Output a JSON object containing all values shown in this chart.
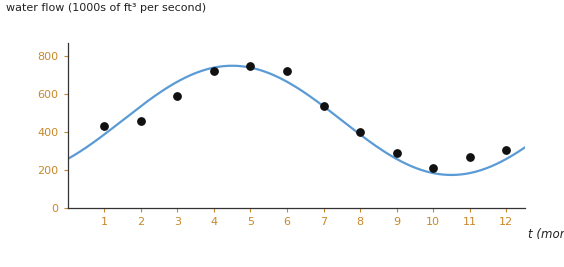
{
  "ylabel": "water flow (1000s of ft³ per second)",
  "xlabel": "t (months)",
  "xlim": [
    0,
    12.5
  ],
  "ylim": [
    0,
    870
  ],
  "yticks": [
    0,
    200,
    400,
    600,
    800
  ],
  "xticks": [
    1,
    2,
    3,
    4,
    5,
    6,
    7,
    8,
    9,
    10,
    11,
    12
  ],
  "dot_t": [
    1,
    2,
    3,
    4,
    5,
    6,
    7,
    8,
    9,
    10,
    11,
    12
  ],
  "dot_y": [
    430,
    460,
    590,
    720,
    750,
    720,
    540,
    400,
    290,
    210,
    270,
    305
  ],
  "curve_color": "#5b9bd5",
  "dot_color": "#111111",
  "sine_A": 287,
  "sine_B": 0.5236,
  "sine_phi": 1.5,
  "sine_C": 462,
  "background_color": "#ffffff",
  "tick_label_color": "#c8882a",
  "axis_color": "#333333"
}
